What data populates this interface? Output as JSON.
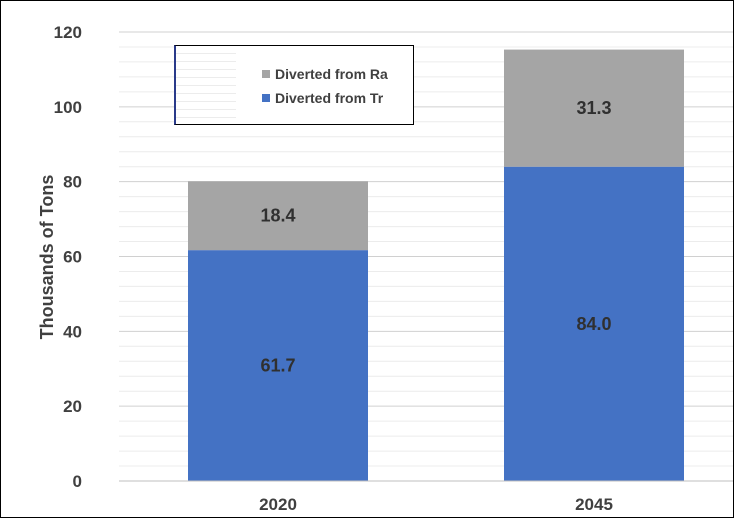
{
  "chart_data": {
    "type": "bar",
    "stacked": true,
    "title": "",
    "xlabel": "",
    "ylabel": "Thousands of Tons",
    "ylim": [
      0,
      120
    ],
    "yticks": [
      "0",
      "20",
      "40",
      "60",
      "80",
      "100",
      "120"
    ],
    "categories": [
      "2020",
      "2045"
    ],
    "grid": true,
    "legend_position": "top-left",
    "series": [
      {
        "name": "Diverted from Trucks",
        "values": [
          61.7,
          84.0
        ],
        "labels": [
          "61.7",
          "84.0"
        ],
        "color": "#4472c4"
      },
      {
        "name": "Diverted from Rail",
        "values": [
          18.4,
          31.3
        ],
        "labels": [
          "18.4",
          "31.3"
        ],
        "color": "#a5a5a5"
      }
    ],
    "legend": [
      {
        "text": "Diverted from Ra",
        "color": "#a5a5a5"
      },
      {
        "text": "Diverted from Tr",
        "color": "#4472c4"
      }
    ]
  }
}
